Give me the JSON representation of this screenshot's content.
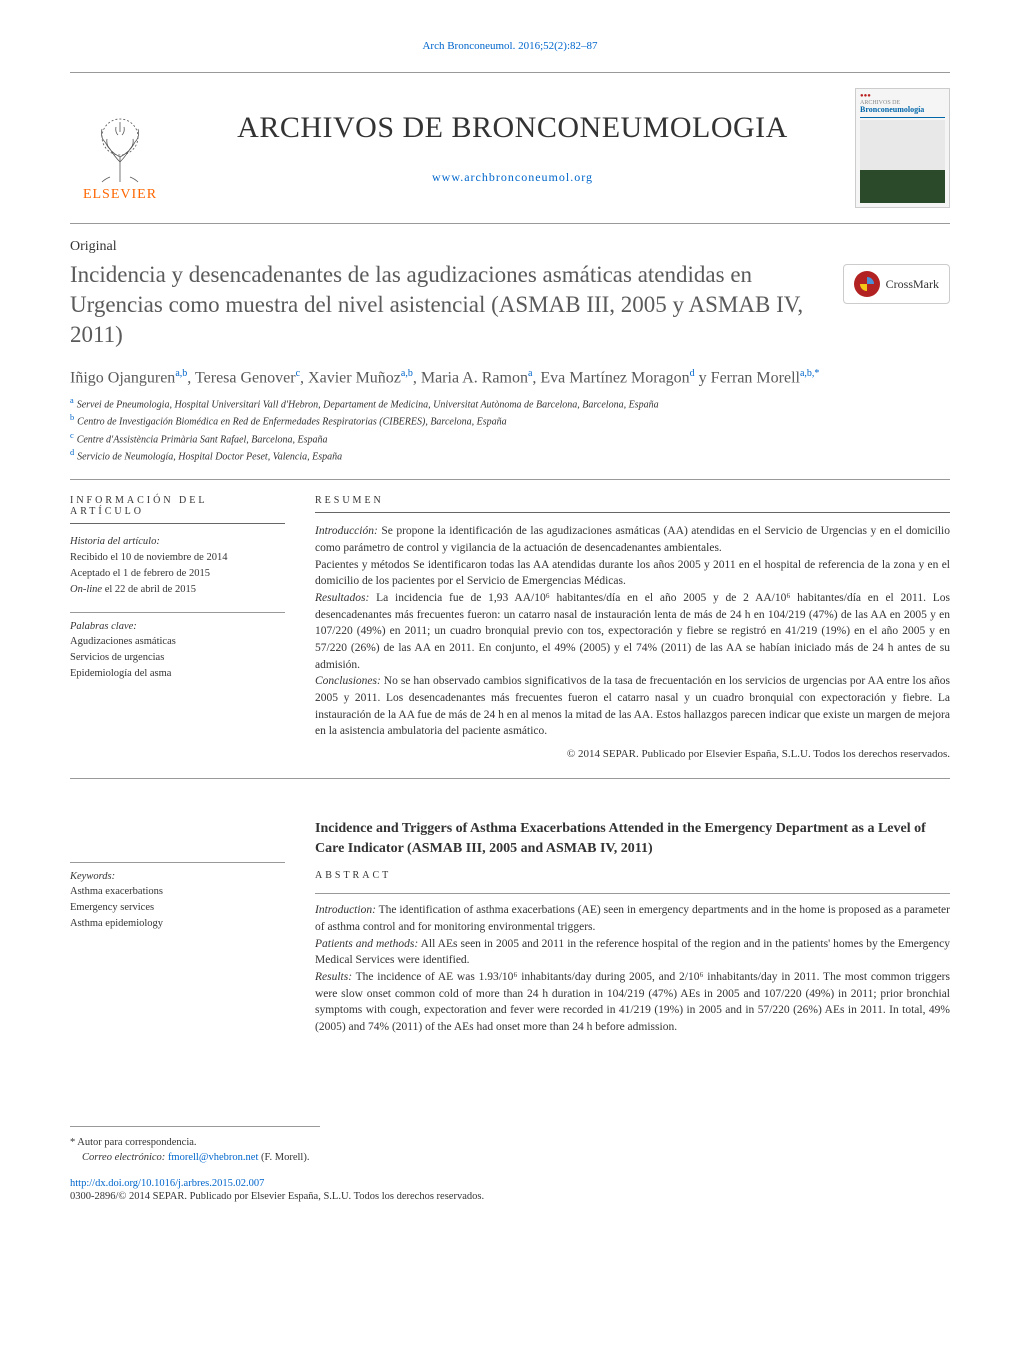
{
  "citation": "Arch Bronconeumol. 2016;52(2):82–87",
  "journal": {
    "title": "ARCHIVOS DE BRONCONEUMOLOGIA",
    "url": "www.archbronconeumol.org",
    "elsevier": "ELSEVIER",
    "cover_label": "Bronconeumología"
  },
  "article_type": "Original",
  "title_es": "Incidencia y desencadenantes de las agudizaciones asmáticas atendidas en Urgencias como muestra del nivel asistencial (ASMAB III, 2005 y ASMAB IV, 2011)",
  "crossmark": "CrossMark",
  "authors_html": "Iñigo Ojanguren<sup>a,b</sup>, Teresa Genover<sup>c</sup>, Xavier Muñoz<sup>a,b</sup>, Maria A. Ramon<sup>a</sup>, Eva Martínez Moragon<sup>d</sup> y Ferran Morell<sup>a,b,*</sup>",
  "affiliations": [
    {
      "sup": "a",
      "text": "Servei de Pneumologia, Hospital Universitari Vall d'Hebron, Departament de Medicina, Universitat Autònoma de Barcelona, Barcelona, España"
    },
    {
      "sup": "b",
      "text": "Centro de Investigación Biomédica en Red de Enfermedades Respiratorias (CIBERES), Barcelona, España"
    },
    {
      "sup": "c",
      "text": "Centre d'Assistència Primària Sant Rafael, Barcelona, España"
    },
    {
      "sup": "d",
      "text": "Servicio de Neumología, Hospital Doctor Peset, Valencia, España"
    }
  ],
  "info_heading": "INFORMACIÓN DEL ARTÍCULO",
  "resumen_heading": "RESUMEN",
  "history": {
    "label": "Historia del artículo:",
    "received": "Recibido el 10 de noviembre de 2014",
    "accepted": "Aceptado el 1 de febrero de 2015",
    "online_prefix": "On-line",
    "online_date": " el 22 de abril de 2015"
  },
  "keywords_es": {
    "label": "Palabras clave:",
    "items": [
      "Agudizaciones asmáticas",
      "Servicios de urgencias",
      "Epidemiología del asma"
    ]
  },
  "keywords_en": {
    "label": "Keywords:",
    "items": [
      "Asthma exacerbations",
      "Emergency services",
      "Asthma epidemiology"
    ]
  },
  "abstract_es": {
    "intro_label": "Introducción:",
    "intro": " Se propone la identificación de las agudizaciones asmáticas (AA) atendidas en el Servicio de Urgencias y en el domicilio como parámetro de control y vigilancia de la actuación de desencadenantes ambientales.",
    "methods": "Pacientes y métodos Se identificaron todas las AA atendidas durante los años 2005 y 2011 en el hospital de referencia de la zona y en el domicilio de los pacientes por el Servicio de Emergencias Médicas.",
    "results_label": "Resultados:",
    "results": " La incidencia fue de 1,93 AA/10⁶ habitantes/día en el año 2005 y de 2 AA/10⁶ habitantes/día en el 2011. Los desencadenantes más frecuentes fueron: un catarro nasal de instauración lenta de más de 24 h en 104/219 (47%) de las AA en 2005 y en 107/220 (49%) en 2011; un cuadro bronquial previo con tos, expectoración y fiebre se registró en 41/219 (19%) en el año 2005 y en 57/220 (26%) de las AA en 2011. En conjunto, el 49% (2005) y el 74% (2011) de las AA se habían iniciado más de 24 h antes de su admisión.",
    "conclusions_label": "Conclusiones:",
    "conclusions": " No se han observado cambios significativos de la tasa de frecuentación en los servicios de urgencias por AA entre los años 2005 y 2011. Los desencadenantes más frecuentes fueron el catarro nasal y un cuadro bronquial con expectoración y fiebre. La instauración de la AA fue de más de 24 h en al menos la mitad de las AA. Estos hallazgos parecen indicar que existe un margen de mejora en la asistencia ambulatoria del paciente asmático.",
    "copyright": "© 2014 SEPAR. Publicado por Elsevier España, S.L.U. Todos los derechos reservados."
  },
  "title_en": "Incidence and Triggers of Asthma Exacerbations Attended in the Emergency Department as a Level of Care Indicator (ASMAB III, 2005 and ASMAB IV, 2011)",
  "abstract_label_en": "ABSTRACT",
  "abstract_en": {
    "intro_label": "Introduction:",
    "intro": " The identification of asthma exacerbations (AE) seen in emergency departments and in the home is proposed as a parameter of asthma control and for monitoring environmental triggers.",
    "methods_label": "Patients and methods:",
    "methods": " All AEs seen in 2005 and 2011 in the reference hospital of the region and in the patients' homes by the Emergency Medical Services were identified.",
    "results_label": "Results:",
    "results": " The incidence of AE was 1.93/10⁶ inhabitants/day during 2005, and 2/10⁶ inhabitants/day in 2011. The most common triggers were slow onset common cold of more than 24 h duration in 104/219 (47%) AEs in 2005 and 107/220 (49%) in 2011; prior bronchial symptoms with cough, expectoration and fever were recorded in 41/219 (19%) in 2005 and in 57/220 (26%) AEs in 2011. In total, 49% (2005) and 74% (2011) of the AEs had onset more than 24 h before admission."
  },
  "footer": {
    "corr_label": "* Autor para correspondencia.",
    "email_label": "Correo electrónico:",
    "email": "fmorell@vhebron.net",
    "email_name": " (F. Morell).",
    "doi": "http://dx.doi.org/10.1016/j.arbres.2015.02.007",
    "issn": "0300-2896/© 2014 SEPAR. Publicado por Elsevier España, S.L.U. Todos los derechos reservados."
  },
  "colors": {
    "link": "#0066cc",
    "elsevier_orange": "#ff6600",
    "crossmark_red": "#b22222",
    "text_gray": "#5a5a5a"
  }
}
